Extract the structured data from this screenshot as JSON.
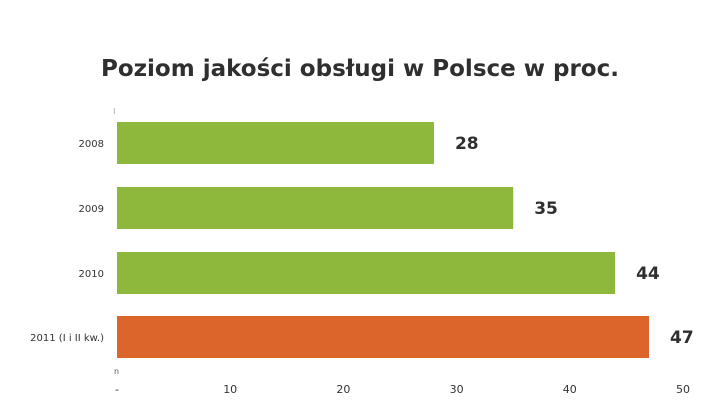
{
  "chart_data": {
    "type": "bar",
    "orientation": "horizontal",
    "title": "Poziom jakości obsługi w Polsce w proc.",
    "categories": [
      "2008",
      "2009",
      "2010",
      "2011 (I i II kw.)"
    ],
    "values": [
      28,
      35,
      44,
      47
    ],
    "bar_colors": [
      "#8db83b",
      "#8db83b",
      "#8db83b",
      "#dc652b"
    ],
    "xlim": [
      0,
      50
    ],
    "x_ticks": [
      "-",
      "10",
      "20",
      "30",
      "40",
      "50"
    ],
    "xlabel": "",
    "ylabel": "",
    "grid": false,
    "legend": "none",
    "data_labels": true
  }
}
